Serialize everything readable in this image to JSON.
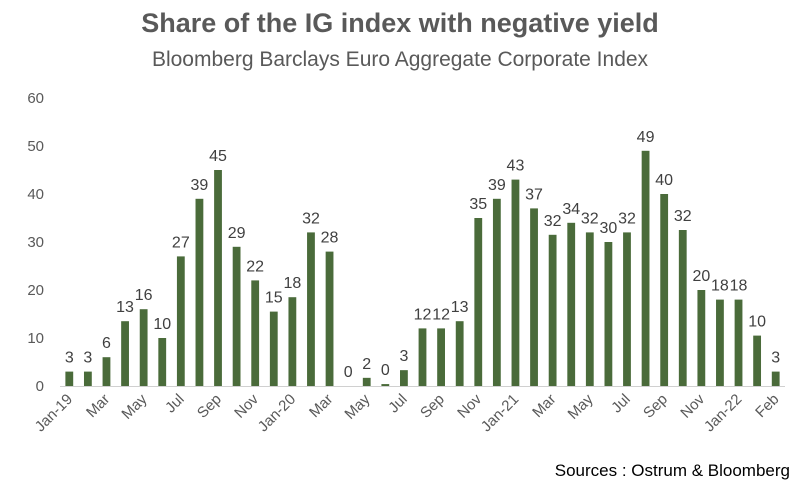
{
  "chart_data": {
    "type": "bar",
    "title": "Share of the IG index with negative yield",
    "subtitle": "Bloomberg  Barclays Euro Aggregate Corporate Index",
    "xlabel": "",
    "ylabel": "",
    "ylim": [
      0,
      60
    ],
    "yticks": [
      0,
      10,
      20,
      30,
      40,
      50,
      60
    ],
    "grid": false,
    "bar_color": "#4a6b3a",
    "categories": [
      "Jan-19",
      "",
      "Mar",
      "",
      "May",
      "",
      "Jul",
      "",
      "Sep",
      "",
      "Nov",
      "",
      "Jan-20",
      "",
      "Mar",
      "",
      "May",
      "",
      "Jul",
      "",
      "Sep",
      "",
      "Nov",
      "",
      "Jan-21",
      "",
      "Mar",
      "",
      "May",
      "",
      "Jul",
      "",
      "Sep",
      "",
      "Nov",
      "",
      "Jan-22",
      "",
      "Feb"
    ],
    "values": [
      3,
      3,
      6,
      13.5,
      16,
      10,
      27,
      39,
      45,
      29,
      22,
      15.5,
      18.5,
      32,
      28,
      0,
      1.7,
      0.4,
      3.3,
      12,
      12,
      13.5,
      35,
      39,
      43,
      37,
      31.5,
      34,
      32,
      30,
      32,
      49,
      40,
      32.5,
      20,
      18,
      18,
      10.5,
      3
    ],
    "data_labels": [
      "3",
      "3",
      "6",
      "13",
      "16",
      "10",
      "27",
      "39",
      "45",
      "29",
      "22",
      "15",
      "18",
      "32",
      "28",
      "0",
      "2",
      "0",
      "3",
      "12",
      "12",
      "13",
      "35",
      "39",
      "43",
      "37",
      "32",
      "34",
      "32",
      "30",
      "32",
      "49",
      "40",
      "32",
      "20",
      "18",
      "18",
      "10",
      "3"
    ]
  },
  "source": "Sources : Ostrum & Bloomberg"
}
